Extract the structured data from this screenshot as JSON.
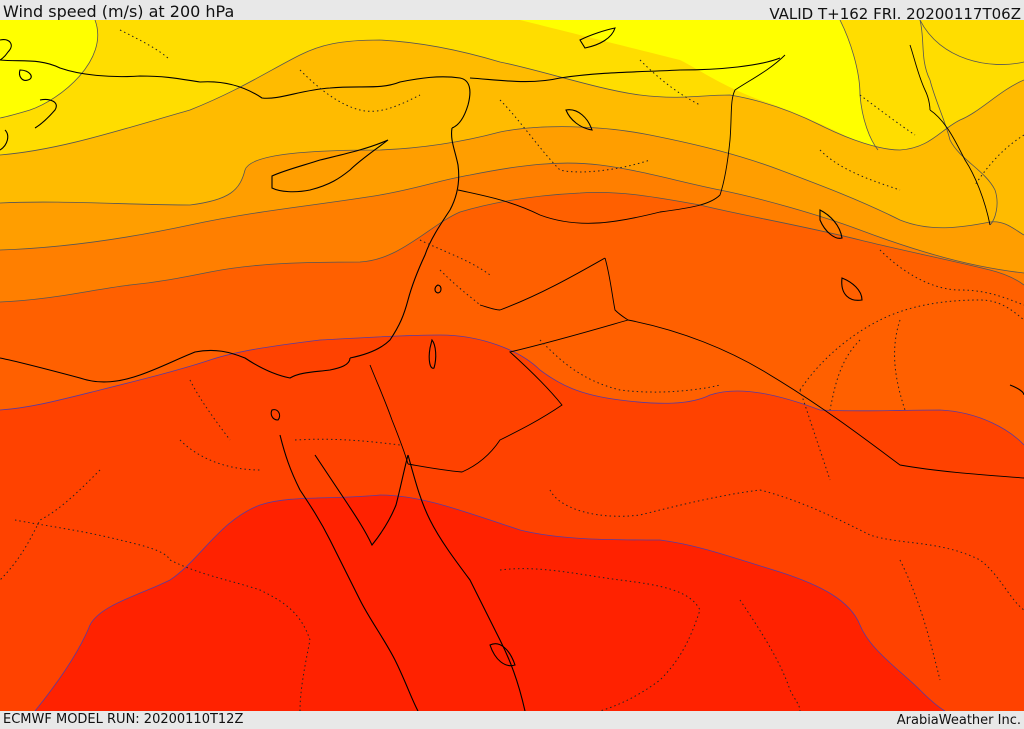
{
  "header": {
    "title": "Wind speed (m/s) at 200 hPa",
    "valid": "VALID T+162 FRI. 20200117T06Z"
  },
  "footer": {
    "model_run": "ECMWF MODEL RUN: 20200110T12Z",
    "credit": "ArabiaWeather Inc."
  },
  "map": {
    "variable": "wind speed at 200 hPa",
    "colors": {
      "band_1": "#ffff00",
      "band_2": "#ffdd00",
      "band_3": "#ffbb00",
      "band_4": "#ff9e00",
      "band_5": "#ff7f00",
      "band_6": "#ff6000",
      "band_7": "#ff4200",
      "band_8": "#ff2200",
      "coastline": "#000000",
      "border": "#000000",
      "contour": "#555555"
    }
  }
}
